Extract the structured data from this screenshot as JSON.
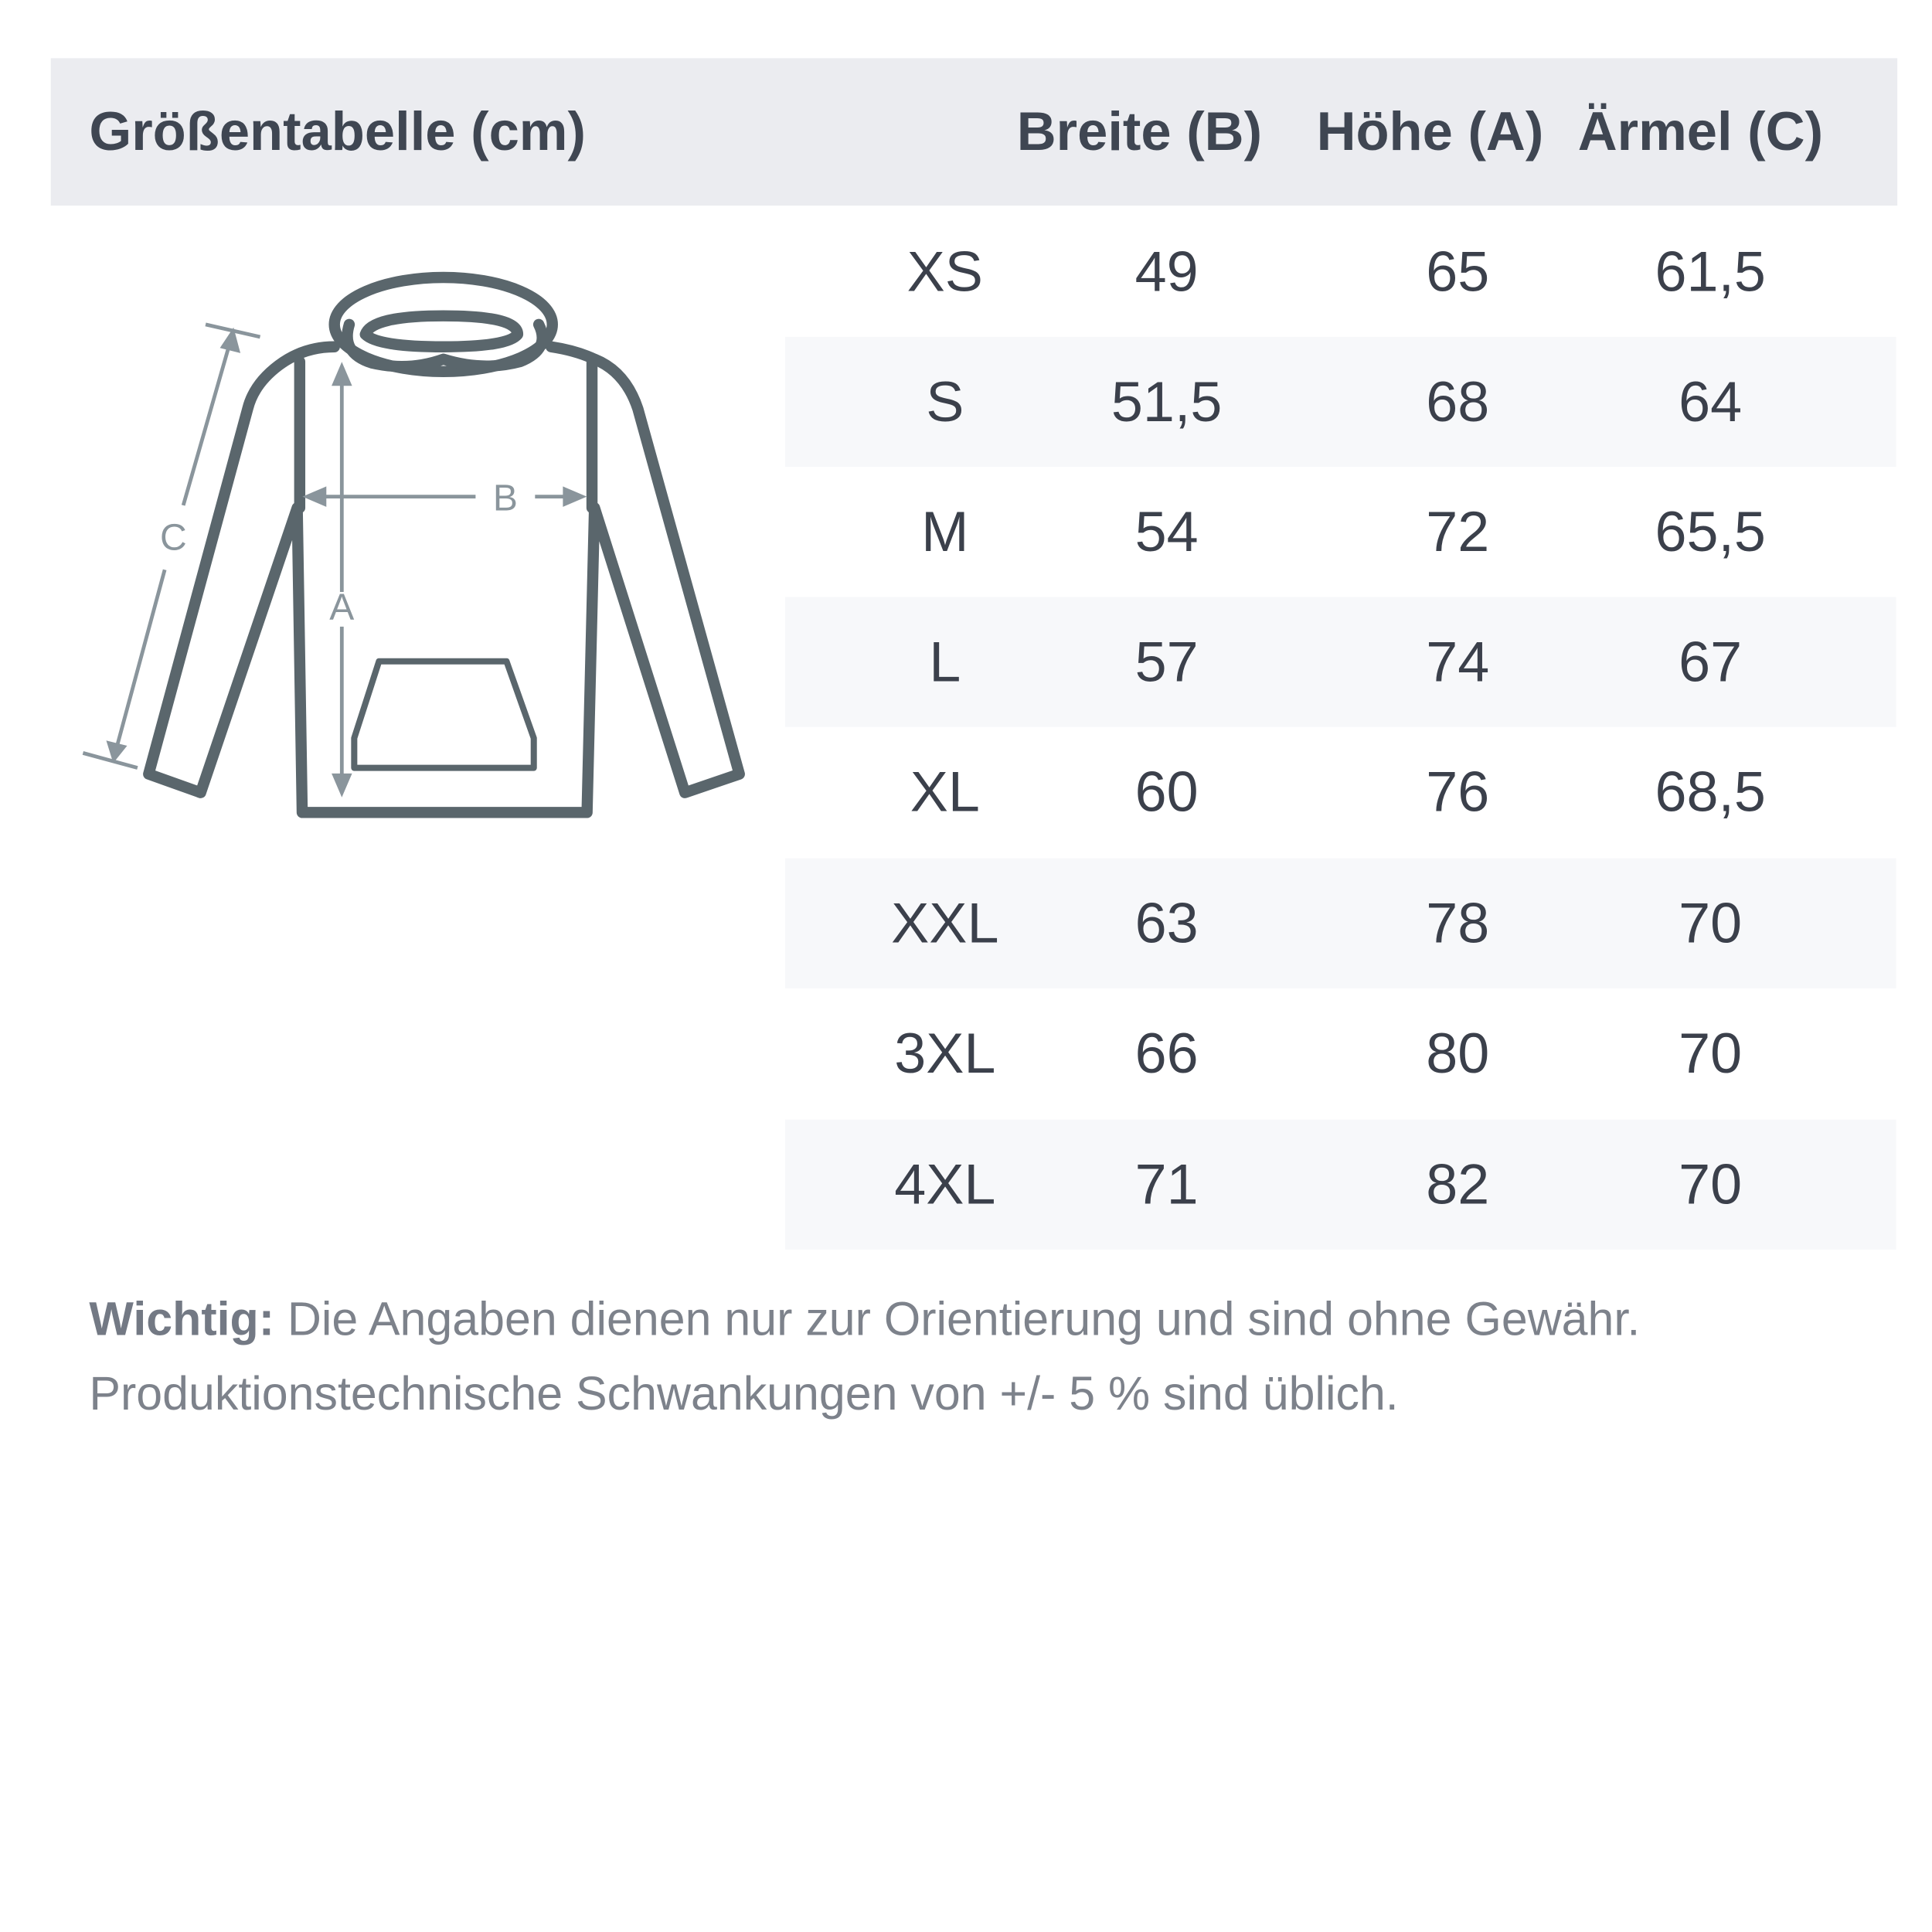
{
  "header": {
    "title": "Größentabelle (cm)",
    "columns": [
      "Breite (B)",
      "Höhe (A)",
      "Ärmel (C)"
    ]
  },
  "diagram": {
    "labels": {
      "width": "B",
      "height": "A",
      "sleeve": "C"
    },
    "stroke_color": "#5a666c",
    "arrow_color": "#8a959c"
  },
  "rows": [
    {
      "size": "XS",
      "breite": "49",
      "hoehe": "65",
      "aermel": "61,5"
    },
    {
      "size": "S",
      "breite": "51,5",
      "hoehe": "68",
      "aermel": "64"
    },
    {
      "size": "M",
      "breite": "54",
      "hoehe": "72",
      "aermel": "65,5"
    },
    {
      "size": "L",
      "breite": "57",
      "hoehe": "74",
      "aermel": "67"
    },
    {
      "size": "XL",
      "breite": "60",
      "hoehe": "76",
      "aermel": "68,5"
    },
    {
      "size": "XXL",
      "breite": "63",
      "hoehe": "78",
      "aermel": "70"
    },
    {
      "size": "3XL",
      "breite": "66",
      "hoehe": "80",
      "aermel": "70"
    },
    {
      "size": "4XL",
      "breite": "71",
      "hoehe": "82",
      "aermel": "70"
    }
  ],
  "note": {
    "label": "Wichtig:",
    "text": " Die Angaben dienen nur zur Orientierung und sind ohne Gewähr. Produktionstechnische Schwankungen von +/- 5 % sind üblich."
  }
}
